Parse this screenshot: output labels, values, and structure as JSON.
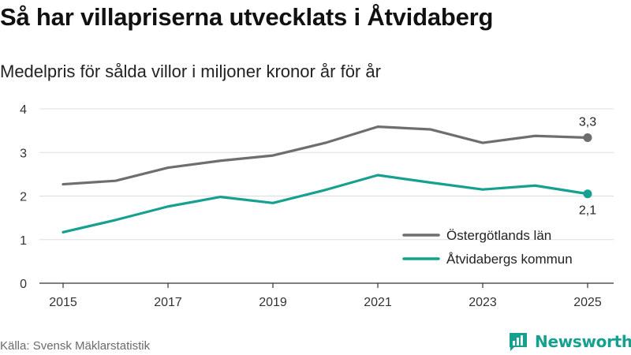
{
  "title": "Så har villapriserna utvecklats i Åtvidaberg",
  "subtitle": "Medelpris för sålda villor i miljoner kronor år för år",
  "source": "Källa: Svensk Mäklarstatistik",
  "brand": {
    "name": "Newsworthy",
    "icon": "newsworthy-logo-icon",
    "color": "#16a08f"
  },
  "chart_data": {
    "type": "line",
    "title": "Så har villapriserna utvecklats i Åtvidaberg",
    "subtitle": "Medelpris för sålda villor i miljoner kronor år för år",
    "xlabel": "",
    "ylabel": "",
    "x": [
      2015,
      2016,
      2017,
      2018,
      2019,
      2020,
      2021,
      2022,
      2023,
      2024,
      2025
    ],
    "x_ticks": [
      "2015",
      "2017",
      "2019",
      "2021",
      "2023",
      "2025"
    ],
    "y_ticks": [
      "0",
      "1",
      "2",
      "3",
      "4"
    ],
    "xlim": [
      2015,
      2025
    ],
    "ylim": [
      0,
      4
    ],
    "grid": true,
    "legend_position": "bottom-right",
    "series": [
      {
        "name": "Östergötlands län",
        "color": "#6e6e6e",
        "values": [
          2.27,
          2.35,
          2.65,
          2.81,
          2.93,
          3.22,
          3.59,
          3.53,
          3.22,
          3.38,
          3.34
        ],
        "end_label": "3,3"
      },
      {
        "name": "Åtvidabergs kommun",
        "color": "#16a08f",
        "values": [
          1.17,
          1.45,
          1.76,
          1.98,
          1.84,
          2.14,
          2.48,
          2.31,
          2.15,
          2.24,
          2.05
        ],
        "end_label": "2,1"
      }
    ]
  }
}
